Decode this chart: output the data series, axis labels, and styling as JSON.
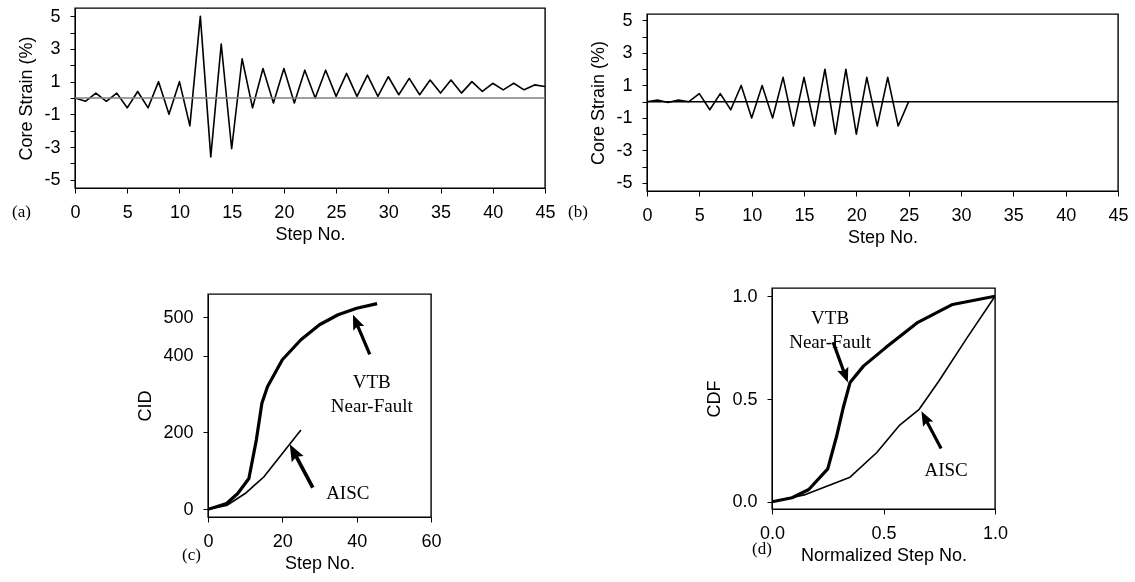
{
  "chart_data": [
    {
      "type": "line",
      "xlabel": "Step No.",
      "ylabel": "Core Strain (%)",
      "annotations": [
        "(a)"
      ],
      "x": [
        0,
        1,
        2,
        3,
        4,
        5,
        6,
        7,
        8,
        9,
        10,
        11,
        12,
        13,
        14,
        15,
        16,
        17,
        18,
        19,
        20,
        21,
        22,
        23,
        24,
        25,
        26,
        27,
        28,
        29,
        30,
        31,
        32,
        33,
        34,
        35,
        36,
        37,
        38,
        39,
        40,
        41,
        42,
        43,
        44,
        45
      ],
      "series": [
        {
          "color": "#000000",
          "values": [
            0,
            -0.2,
            0.3,
            -0.2,
            0.3,
            -0.6,
            0.4,
            -0.6,
            1.0,
            -1.0,
            1.0,
            -1.7,
            5.0,
            -3.6,
            3.3,
            -3.1,
            2.4,
            -0.6,
            1.8,
            -0.3,
            1.8,
            -0.3,
            1.7,
            0,
            1.7,
            0.1,
            1.5,
            0.1,
            1.4,
            0.1,
            1.3,
            0.2,
            1.2,
            0.2,
            1.1,
            0.3,
            1.1,
            0.3,
            1.0,
            0.4,
            0.9,
            0.5,
            0.9,
            0.5,
            0.8,
            0.7
          ]
        }
      ],
      "xlim": [
        0,
        45
      ],
      "xticks": [
        0,
        5,
        10,
        15,
        20,
        25,
        30,
        35,
        40,
        45
      ],
      "ylim": [
        -5.5,
        5.5
      ],
      "yticks": [
        -5,
        {
          "value": -4,
          "label": null
        },
        -3,
        {
          "value": -2,
          "label": null
        },
        -1,
        {
          "value": 0,
          "label": null
        },
        1,
        {
          "value": 2,
          "label": null
        },
        3,
        {
          "value": 4,
          "label": null
        },
        5
      ],
      "ref_lines": [
        {
          "axis": "y",
          "value": 0,
          "color": "#808080"
        }
      ]
    },
    {
      "type": "line",
      "xlabel": "Step No.",
      "ylabel": "Core Strain (%)",
      "annotations": [
        "(b)"
      ],
      "x": [
        0,
        1,
        2,
        3,
        4,
        5,
        6,
        7,
        8,
        9,
        10,
        11,
        12,
        13,
        14,
        15,
        16,
        17,
        18,
        19,
        20,
        21,
        22,
        23,
        24,
        25
      ],
      "series": [
        {
          "color": "#000000",
          "values": [
            0,
            0.1,
            -0.05,
            0.1,
            0,
            0.5,
            -0.5,
            0.5,
            -0.5,
            1.0,
            -1.0,
            1.0,
            -1.0,
            1.5,
            -1.5,
            1.5,
            -1.5,
            2.0,
            -2.0,
            2.0,
            -2.0,
            1.5,
            -1.5,
            1.5,
            -1.5,
            0
          ]
        }
      ],
      "xlim": [
        0,
        45
      ],
      "xticks": [
        0,
        5,
        10,
        15,
        20,
        25,
        30,
        35,
        40,
        45
      ],
      "ylim": [
        -5.5,
        5.4
      ],
      "yticks": [
        -5,
        {
          "value": -4,
          "label": null
        },
        -3,
        {
          "value": -2,
          "label": null
        },
        -1,
        {
          "value": 0,
          "label": null
        },
        1,
        {
          "value": 2,
          "label": null
        },
        3,
        {
          "value": 4,
          "label": null
        },
        5
      ],
      "ref_lines": [
        {
          "axis": "y",
          "value": 0,
          "color": "#000000"
        }
      ]
    },
    {
      "type": "line",
      "xlabel": "Step No.",
      "ylabel": "CID",
      "annotations": [
        "(c)",
        {
          "text": "VTB\nNear-Fault",
          "x": 39,
          "y": 506
        },
        {
          "text": "AISC",
          "x": 22,
          "y": 169
        }
      ],
      "series": [
        {
          "color": "#000000",
          "x": [
            0,
            5,
            8,
            11,
            13,
            14.5,
            16,
            20,
            25,
            30,
            35,
            40,
            45.5
          ],
          "values": [
            0,
            15,
            41,
            80,
            180,
            276,
            319,
            389,
            441,
            480,
            506,
            523,
            535
          ]
        },
        {
          "color": "#000000",
          "x": [
            0,
            5,
            10,
            15,
            20,
            25
          ],
          "values": [
            0,
            10,
            41,
            84,
            145,
            206
          ]
        }
      ],
      "xlim": [
        0,
        60
      ],
      "xticks": [
        0,
        20,
        40,
        60
      ],
      "ylim": [
        -20,
        560
      ],
      "yticks": [
        0,
        200,
        400,
        500
      ]
    },
    {
      "type": "line",
      "xlabel": "Normalized Step No.",
      "ylabel": "CDF",
      "annotations": [
        "(d)",
        {
          "text": "VTB\nNear-Fault",
          "x": 0.34,
          "y": 0.58
        },
        {
          "text": "AISC",
          "x": 0.67,
          "y": 0.44
        }
      ],
      "series": [
        {
          "color": "#000000",
          "x": [
            0,
            0.09,
            0.165,
            0.25,
            0.29,
            0.32,
            0.35,
            0.41,
            0.51,
            0.65,
            0.81,
            1
          ],
          "values": [
            0,
            0.02,
            0.06,
            0.16,
            0.32,
            0.46,
            0.58,
            0.66,
            0.75,
            0.87,
            0.96,
            1
          ]
        },
        {
          "color": "#000000",
          "x": [
            0,
            0.15,
            0.35,
            0.47,
            0.57,
            0.66,
            0.75,
            0.87,
            1
          ],
          "values": [
            0,
            0.035,
            0.12,
            0.24,
            0.37,
            0.45,
            0.59,
            0.79,
            1
          ]
        }
      ],
      "xlim": [
        0,
        1
      ],
      "xticks": [
        {
          "value": 0,
          "label": "0.0"
        },
        {
          "value": 0.5,
          "label": "0.5"
        },
        {
          "value": 1,
          "label": "1.0"
        }
      ],
      "ylim": [
        -0.035,
        1.04
      ],
      "yticks": [
        {
          "value": 0,
          "label": "0.0"
        },
        {
          "value": 0.5,
          "label": "0.5"
        },
        {
          "value": 1,
          "label": "1.0"
        }
      ]
    }
  ]
}
